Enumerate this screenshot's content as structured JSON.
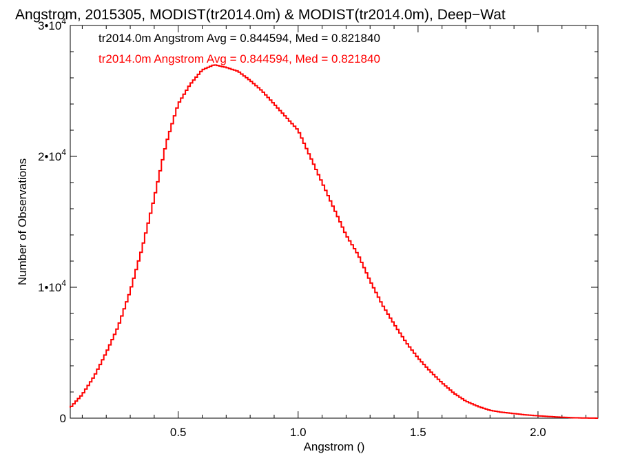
{
  "chart_data": {
    "type": "line",
    "title": "Angstrom, 2015305, MODIST(tr2014.0m) & MODIST(tr2014.0m), Deep−Wat",
    "xlabel": "Angstrom ()",
    "ylabel": "Number of Observations",
    "xlim": [
      0.05,
      2.25
    ],
    "ylim": [
      0,
      30000
    ],
    "x_ticks": [
      {
        "value": 0.5,
        "label": "0.5"
      },
      {
        "value": 1.0,
        "label": "1.0"
      },
      {
        "value": 1.5,
        "label": "1.5"
      },
      {
        "value": 2.0,
        "label": "2.0"
      }
    ],
    "y_ticks": [
      {
        "value": 0,
        "base": "0",
        "exp": ""
      },
      {
        "value": 10000,
        "base": "1•10",
        "exp": "4"
      },
      {
        "value": 20000,
        "base": "2•10",
        "exp": "4"
      },
      {
        "value": 30000,
        "base": "3•10",
        "exp": "4"
      }
    ],
    "annotations": [
      {
        "text": "tr2014.0m Angstrom Avg = 0.844594, Med = 0.821840",
        "color": "#000000"
      },
      {
        "text": "tr2014.0m Angstrom Avg = 0.844594, Med = 0.821840",
        "color": "#ff0000"
      }
    ],
    "series": [
      {
        "color": "#ff0000",
        "x": [
          0.05,
          0.1,
          0.15,
          0.2,
          0.25,
          0.3,
          0.35,
          0.4,
          0.45,
          0.5,
          0.55,
          0.6,
          0.65,
          0.7,
          0.75,
          0.8,
          0.85,
          0.9,
          0.95,
          1.0,
          1.05,
          1.1,
          1.15,
          1.2,
          1.25,
          1.3,
          1.35,
          1.4,
          1.45,
          1.5,
          1.55,
          1.6,
          1.65,
          1.7,
          1.75,
          1.8,
          1.85,
          1.9,
          1.95,
          2.0,
          2.05,
          2.1,
          2.15,
          2.2,
          2.25
        ],
        "y": [
          800,
          1800,
          3200,
          5000,
          7000,
          9700,
          13000,
          16800,
          21000,
          24000,
          25500,
          26600,
          27000,
          26800,
          26500,
          25800,
          25000,
          24000,
          23000,
          22000,
          20000,
          18000,
          16000,
          14000,
          12500,
          10500,
          8700,
          7200,
          5800,
          4600,
          3600,
          2700,
          1900,
          1300,
          900,
          600,
          450,
          350,
          250,
          180,
          120,
          70,
          30,
          10,
          0
        ]
      }
    ],
    "legend": "none",
    "grid": false
  }
}
